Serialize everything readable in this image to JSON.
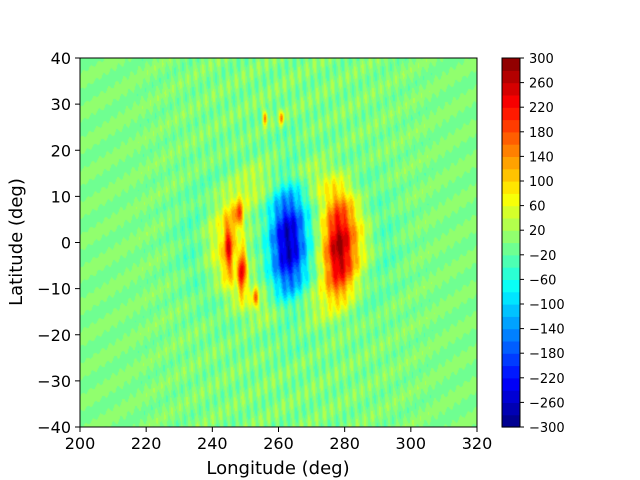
{
  "chart_data": {
    "type": "heatmap",
    "title": "",
    "xlabel": "Longitude (deg)",
    "ylabel": "Latitude (deg)",
    "xlim": [
      200,
      320
    ],
    "ylim": [
      -40,
      40
    ],
    "xticks": [
      200,
      220,
      240,
      260,
      280,
      300,
      320
    ],
    "yticks": [
      -40,
      -30,
      -20,
      -10,
      0,
      10,
      20,
      30,
      40
    ],
    "colormap": "jet",
    "colorbar": {
      "min": -300,
      "max": 300,
      "levels": 30,
      "ticks": [
        -300,
        -260,
        -220,
        -180,
        -140,
        -100,
        -60,
        -20,
        20,
        60,
        100,
        140,
        180,
        220,
        260,
        300
      ]
    },
    "background_value": 0,
    "features": [
      {
        "kind": "negative_core",
        "lon": 263,
        "lat": 0,
        "peak": -270,
        "lon_halfwidth": 5.5,
        "lat_halfwidth": 12
      },
      {
        "kind": "positive_core",
        "lon": 278,
        "lat": -1,
        "peak": 250,
        "lon_halfwidth": 4.5,
        "lat_halfwidth": 10
      },
      {
        "kind": "positive_lobe",
        "lon": 249,
        "lat": -6,
        "peak": 210,
        "lon_halfwidth": 1.2,
        "lat_halfwidth": 5
      },
      {
        "kind": "positive_lobe",
        "lon": 245,
        "lat": -1,
        "peak": 170,
        "lon_halfwidth": 1.5,
        "lat_halfwidth": 6
      },
      {
        "kind": "positive_lobe",
        "lon": 248,
        "lat": 6,
        "peak": 150,
        "lon_halfwidth": 1.3,
        "lat_halfwidth": 3
      },
      {
        "kind": "positive_streak",
        "lon": 256,
        "lat": 27,
        "peak": 150,
        "lon_halfwidth": 0.7,
        "lat_halfwidth": 1.5
      },
      {
        "kind": "positive_streak",
        "lon": 261,
        "lat": 27,
        "peak": 150,
        "lon_halfwidth": 0.7,
        "lat_halfwidth": 1.5
      },
      {
        "kind": "positive_streak",
        "lon": 253,
        "lat": -12,
        "peak": 130,
        "lon_halfwidth": 0.8,
        "lat_halfwidth": 2
      },
      {
        "kind": "ring_positive",
        "lon": 263,
        "lat": 0,
        "peak": 65,
        "radius_deg": 18
      },
      {
        "kind": "ring_negative",
        "lon": 263,
        "lat": 0,
        "peak": -25,
        "radius_deg": 26
      }
    ]
  }
}
